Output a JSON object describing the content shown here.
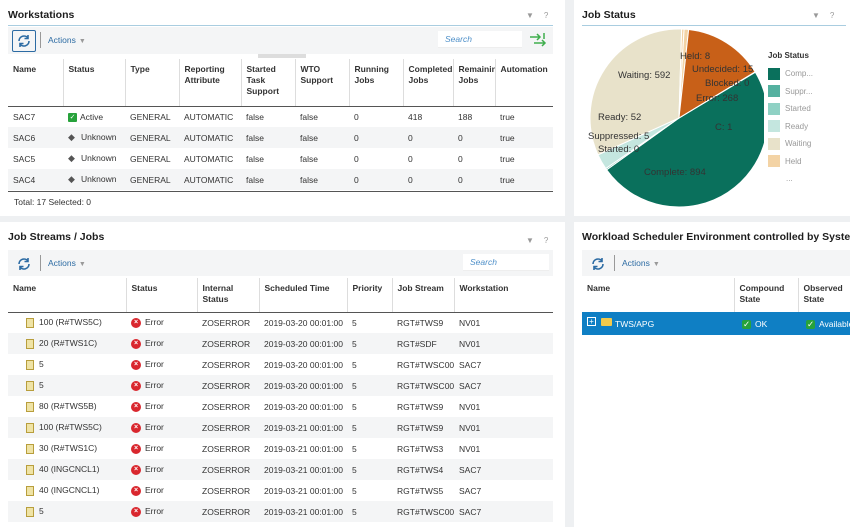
{
  "workstations": {
    "title": "Workstations",
    "search_placeholder": "Search",
    "actions_label": "Actions",
    "columns": [
      "Name",
      "Status",
      "Type",
      "Reporting Attribute",
      "Started Task Support",
      "WTO Support",
      "Running Jobs",
      "Completed Jobs",
      "Remaining Jobs",
      "Automation"
    ],
    "rows": [
      {
        "name": "SAC7",
        "status": "Active",
        "status_icon": "checkmark-icon",
        "type": "GENERAL",
        "reporting": "AUTOMATIC",
        "started_task": "false",
        "wto": "false",
        "running": "0",
        "completed": "418",
        "remaining": "188",
        "automation": "true"
      },
      {
        "name": "SAC6",
        "status": "Unknown",
        "status_icon": "unknown-icon",
        "type": "GENERAL",
        "reporting": "AUTOMATIC",
        "started_task": "false",
        "wto": "false",
        "running": "0",
        "completed": "0",
        "remaining": "0",
        "automation": "true"
      },
      {
        "name": "SAC5",
        "status": "Unknown",
        "status_icon": "unknown-icon",
        "type": "GENERAL",
        "reporting": "AUTOMATIC",
        "started_task": "false",
        "wto": "false",
        "running": "0",
        "completed": "0",
        "remaining": "0",
        "automation": "true"
      },
      {
        "name": "SAC4",
        "status": "Unknown",
        "status_icon": "unknown-icon",
        "type": "GENERAL",
        "reporting": "AUTOMATIC",
        "started_task": "false",
        "wto": "false",
        "running": "0",
        "completed": "0",
        "remaining": "0",
        "automation": "true"
      }
    ],
    "footer": "Total: 17 Selected: 0"
  },
  "job_status": {
    "title": "Job Status",
    "legend_title": "Job Status",
    "legend": [
      {
        "label": "Comp...",
        "color": "#0a705c"
      },
      {
        "label": "Suppr...",
        "color": "#55b1a0"
      },
      {
        "label": "Started",
        "color": "#8fd1c4"
      },
      {
        "label": "Ready",
        "color": "#c4e6df"
      },
      {
        "label": "Waiting",
        "color": "#e8e2ca"
      },
      {
        "label": "Held",
        "color": "#f3d3a5"
      }
    ],
    "legend_more": "...",
    "slice_labels": {
      "held": "Held: 8",
      "undecided": "Undecided: 15",
      "blocked": "Blocked: 0",
      "error": "Error: 268",
      "c": "C: 1",
      "waiting": "Waiting: 592",
      "ready": "Ready: 52",
      "suppressed": "Suppressed: 5",
      "started": "Started: 0",
      "complete": "Complete: 894"
    }
  },
  "chart_data": {
    "type": "pie",
    "title": "Job Status",
    "categories": [
      "Complete",
      "Suppressed",
      "Started",
      "Ready",
      "Waiting",
      "Held",
      "Undecided",
      "Blocked",
      "Error",
      "C"
    ],
    "values": [
      894,
      5,
      0,
      52,
      592,
      8,
      15,
      0,
      268,
      1
    ],
    "colors": [
      "#0a705c",
      "#55b1a0",
      "#8fd1c4",
      "#c4e6df",
      "#e8e2ca",
      "#f3d3a5",
      "#f3d3a5",
      "#e8a060",
      "#c86018",
      "#f5f5f5"
    ],
    "legend": "right"
  },
  "job_streams": {
    "title": "Job Streams / Jobs",
    "search_placeholder": "Search",
    "actions_label": "Actions",
    "columns": [
      "Name",
      "Status",
      "Internal Status",
      "Scheduled Time",
      "Priority",
      "Job Stream",
      "Workstation"
    ],
    "rows": [
      {
        "name": "100 (R#TWS5C)",
        "status": "Error",
        "internal": "ZOSERROR",
        "time": "2019-03-20 00:01:00",
        "priority": "5",
        "stream": "RGT#TWS9",
        "ws": "NV01"
      },
      {
        "name": "20 (R#TWS1C)",
        "status": "Error",
        "internal": "ZOSERROR",
        "time": "2019-03-20 00:01:00",
        "priority": "5",
        "stream": "RGT#SDF",
        "ws": "NV01"
      },
      {
        "name": "5",
        "status": "Error",
        "internal": "ZOSERROR",
        "time": "2019-03-20 00:01:00",
        "priority": "5",
        "stream": "RGT#TWSC00",
        "ws": "SAC7"
      },
      {
        "name": "5",
        "status": "Error",
        "internal": "ZOSERROR",
        "time": "2019-03-20 00:01:00",
        "priority": "5",
        "stream": "RGT#TWSC00",
        "ws": "SAC7"
      },
      {
        "name": "80 (R#TWS5B)",
        "status": "Error",
        "internal": "ZOSERROR",
        "time": "2019-03-20 00:01:00",
        "priority": "5",
        "stream": "RGT#TWS9",
        "ws": "NV01"
      },
      {
        "name": "100 (R#TWS5C)",
        "status": "Error",
        "internal": "ZOSERROR",
        "time": "2019-03-21 00:01:00",
        "priority": "5",
        "stream": "RGT#TWS9",
        "ws": "NV01"
      },
      {
        "name": "30 (R#TWS1C)",
        "status": "Error",
        "internal": "ZOSERROR",
        "time": "2019-03-21 00:01:00",
        "priority": "5",
        "stream": "RGT#TWS3",
        "ws": "NV01"
      },
      {
        "name": "40 (INGCNCL1)",
        "status": "Error",
        "internal": "ZOSERROR",
        "time": "2019-03-21 00:01:00",
        "priority": "5",
        "stream": "RGT#TWS4",
        "ws": "SAC7"
      },
      {
        "name": "40 (INGCNCL1)",
        "status": "Error",
        "internal": "ZOSERROR",
        "time": "2019-03-21 00:01:00",
        "priority": "5",
        "stream": "RGT#TWS5",
        "ws": "SAC7"
      },
      {
        "name": "5",
        "status": "Error",
        "internal": "ZOSERROR",
        "time": "2019-03-21 00:01:00",
        "priority": "5",
        "stream": "RGT#TWSC00",
        "ws": "SAC7"
      }
    ]
  },
  "environment": {
    "title": "Workload Scheduler Environment controlled by System A",
    "actions_label": "Actions",
    "columns": [
      "Name",
      "Compound State",
      "Observed State"
    ],
    "row": {
      "expander": "+",
      "name": "TWS/APG",
      "compound": "OK",
      "observed": "Available"
    }
  },
  "colors": {
    "accent": "#2c6ba3",
    "selection": "#0f7fc4",
    "error": "#d9272e",
    "ok": "#27a23b"
  }
}
